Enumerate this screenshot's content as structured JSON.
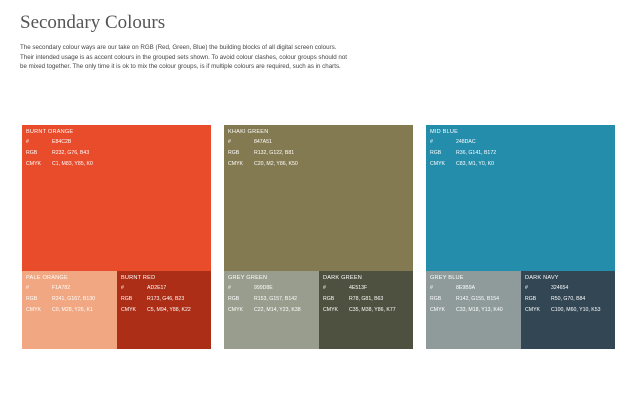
{
  "header": {
    "title": "Secondary Colours",
    "intro": "The secondary colour ways are our take on RGB (Red, Green, Blue) the building blocks of all digital screen colours. Their intended usage is as accent colours in the grouped sets shown. To avoid colour clashes, colour groups should not be mixed together. The only time it is ok to mix the colour groups, is if multiple colours are required, such as in charts."
  },
  "labels": {
    "hex": "#",
    "rgb": "RGB",
    "cmyk": "CMYK"
  },
  "groups": [
    {
      "main": {
        "name": "BURNT ORANGE",
        "hex": "E84C2B",
        "rgb": "R232, G76, B43",
        "cmyk": "C1, M83, Y85, K0",
        "color": "#E84C2B"
      },
      "sub1": {
        "name": "PALE ORANGE",
        "hex": "F1A782",
        "rgb": "R241, G167, B130",
        "cmyk": "C0, M28, Y26, K1",
        "color": "#F1A782"
      },
      "sub2": {
        "name": "BURNT RED",
        "hex": "AD2E17",
        "rgb": "R173, G46, B23",
        "cmyk": "C5, M94, Y88, K22",
        "color": "#AD2E17"
      }
    },
    {
      "main": {
        "name": "KHAKI GREEN",
        "hex": "847A51",
        "rgb": "R132, G122, B81",
        "cmyk": "C20, M2, Y86, K50",
        "color": "#847A51"
      },
      "sub1": {
        "name": "GREY GREEN",
        "hex": "999D8E",
        "rgb": "R153, G157, B142",
        "cmyk": "C22, M14, Y23, K38",
        "color": "#999D8E"
      },
      "sub2": {
        "name": "DARK GREEN",
        "hex": "4E513F",
        "rgb": "R78, G81, B63",
        "cmyk": "C35, M38, Y86, K77",
        "color": "#4E513F"
      }
    },
    {
      "main": {
        "name": "MID BLUE",
        "hex": "248DAC",
        "rgb": "R36, G141, B172",
        "cmyk": "C83, M1, Y0, K0",
        "color": "#248DAC"
      },
      "sub1": {
        "name": "GREY BLUE",
        "hex": "8E9B9A",
        "rgb": "R142, G155, B154",
        "cmyk": "C33, M18, Y13, K40",
        "color": "#8E9B9A"
      },
      "sub2": {
        "name": "DARK NAVY",
        "hex": "324654",
        "rgb": "R50, G70, B84",
        "cmyk": "C100, M60, Y10, K53",
        "color": "#324654"
      }
    }
  ]
}
